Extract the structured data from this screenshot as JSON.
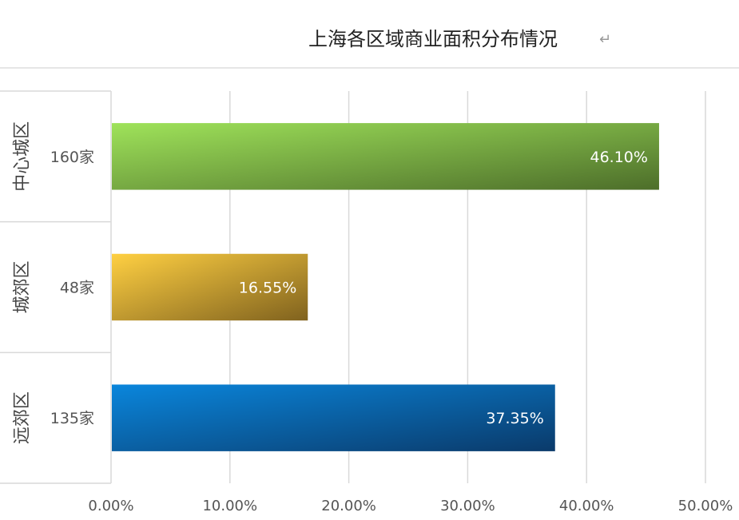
{
  "chart_data": {
    "type": "bar",
    "orientation": "horizontal",
    "title": "上海各区域商业面积分布情况",
    "title_mark": "↵",
    "categories": [
      {
        "region": "中心城区",
        "count": "160家"
      },
      {
        "region": "城郊区",
        "count": "48家"
      },
      {
        "region": "远郊区",
        "count": "135家"
      }
    ],
    "values": [
      46.1,
      16.55,
      37.35
    ],
    "value_labels": [
      "46.10%",
      "16.55%",
      "37.35%"
    ],
    "xlim": [
      0,
      50
    ],
    "x_ticks": [
      "0.00%",
      "10.00%",
      "20.00%",
      "30.00%",
      "40.00%",
      "50.00%"
    ],
    "grid": true,
    "legend": "none",
    "colors": [
      {
        "start": "#9fe35a",
        "end": "#4d6e2a"
      },
      {
        "start": "#ffd042",
        "end": "#80621e"
      },
      {
        "start": "#0a86dc",
        "end": "#0a3a6a"
      }
    ]
  }
}
